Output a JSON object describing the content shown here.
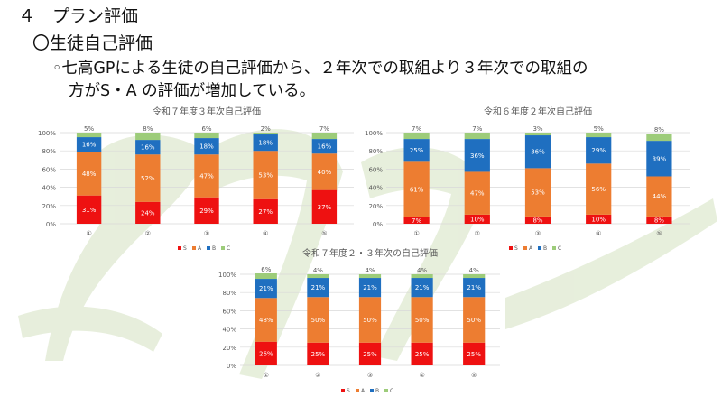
{
  "slide": {
    "heading": "４　プラン評価",
    "subheading": "〇生徒自己評価",
    "bullet_line1": "◦七高GPによる生徒の自己評価から、２年次での取組より３年次での取組の",
    "bullet_line2": "方がS・A の評価が増加している。"
  },
  "colors": {
    "S": "#ee1111",
    "A": "#ed7d31",
    "B": "#1f6fc0",
    "C": "#9dcc7a"
  },
  "chart_data": [
    {
      "type": "bar",
      "stacked": true,
      "title": "令和７年度３年次自己評価",
      "categories": [
        "①",
        "②",
        "③",
        "④",
        "⑤"
      ],
      "yticks": [
        "0%",
        "20%",
        "40%",
        "60%",
        "80%",
        "100%"
      ],
      "ylim": [
        0,
        100
      ],
      "series": [
        {
          "name": "S",
          "values": [
            31,
            24,
            29,
            27,
            37
          ],
          "labels": [
            "31%",
            "24%",
            "29%",
            "27%",
            "37%"
          ]
        },
        {
          "name": "A",
          "values": [
            48,
            52,
            47,
            53,
            40
          ],
          "labels": [
            "48%",
            "52%",
            "47%",
            "53%",
            "40%"
          ]
        },
        {
          "name": "B",
          "values": [
            16,
            16,
            18,
            18,
            16
          ],
          "labels": [
            "16%",
            "16%",
            "18%",
            "18%",
            "16%"
          ]
        },
        {
          "name": "C",
          "values": [
            5,
            8,
            6,
            2,
            7
          ],
          "labels": [
            "5%",
            "8%",
            "6%",
            "2%",
            "7%"
          ]
        }
      ],
      "legend": "bottom"
    },
    {
      "type": "bar",
      "stacked": true,
      "title": "令和６年度２年次自己評価",
      "categories": [
        "①",
        "②",
        "③",
        "④",
        "⑤"
      ],
      "yticks": [
        "0%",
        "20%",
        "40%",
        "60%",
        "80%",
        "100%"
      ],
      "ylim": [
        0,
        100
      ],
      "series": [
        {
          "name": "S",
          "values": [
            7,
            10,
            8,
            10,
            8
          ],
          "labels": [
            "7%",
            "10%",
            "8%",
            "10%",
            "8%"
          ]
        },
        {
          "name": "A",
          "values": [
            61,
            47,
            53,
            56,
            44
          ],
          "labels": [
            "61%",
            "47%",
            "53%",
            "56%",
            "44%"
          ]
        },
        {
          "name": "B",
          "values": [
            25,
            36,
            36,
            29,
            39
          ],
          "labels": [
            "25%",
            "36%",
            "36%",
            "29%",
            "39%"
          ]
        },
        {
          "name": "C",
          "values": [
            7,
            7,
            3,
            5,
            8
          ],
          "labels": [
            "7%",
            "7%",
            "3%",
            "5%",
            "8%"
          ]
        }
      ],
      "legend": "bottom"
    },
    {
      "type": "bar",
      "stacked": true,
      "title": "令和７年度２・３年次の自己評価",
      "categories": [
        "①",
        "②",
        "③",
        "④",
        "⑤"
      ],
      "yticks": [
        "0%",
        "20%",
        "40%",
        "60%",
        "80%",
        "100%"
      ],
      "ylim": [
        0,
        100
      ],
      "series": [
        {
          "name": "S",
          "values": [
            26,
            25,
            25,
            25,
            25
          ],
          "labels": [
            "26%",
            "25%",
            "25%",
            "25%",
            "25%"
          ]
        },
        {
          "name": "A",
          "values": [
            48,
            50,
            50,
            50,
            50
          ],
          "labels": [
            "48%",
            "50%",
            "50%",
            "50%",
            "50%"
          ]
        },
        {
          "name": "B",
          "values": [
            21,
            21,
            21,
            21,
            21
          ],
          "labels": [
            "21%",
            "21%",
            "21%",
            "21%",
            "21%"
          ]
        },
        {
          "name": "C",
          "values": [
            6,
            4,
            4,
            4,
            4
          ],
          "labels": [
            "6%",
            "4%",
            "4%",
            "4%",
            "4%"
          ]
        }
      ],
      "legend": "bottom"
    }
  ]
}
